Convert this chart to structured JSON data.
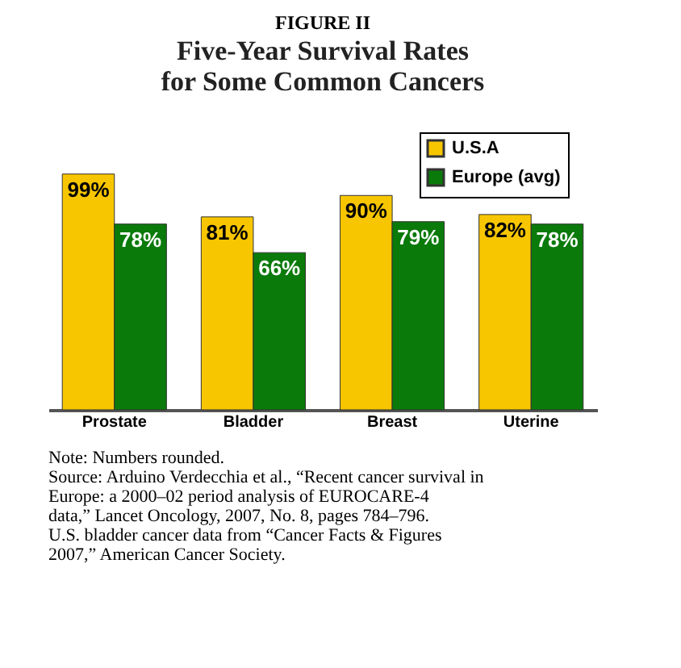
{
  "chart_data": {
    "type": "bar",
    "title": "FIGURE II",
    "subtitle": "Five-Year Survival Rates\nfor Some Common Cancers",
    "categories": [
      "Prostate",
      "Bladder",
      "Breast",
      "Uterine"
    ],
    "series": [
      {
        "name": "U.S.A",
        "color": "#f7c600",
        "values": [
          99,
          81,
          90,
          82
        ],
        "value_labels": [
          "99%",
          "81%",
          "90%",
          "82%"
        ]
      },
      {
        "name": "Europe (avg)",
        "color": "#0a7a0a",
        "values": [
          78,
          66,
          79,
          78
        ],
        "value_labels": [
          "78%",
          "66%",
          "79%",
          "78%"
        ]
      }
    ],
    "legend": "top right",
    "grid": false,
    "annotations": [
      "Note:  Numbers rounded.",
      "Source: Arduino Verdecchia et al., “Recent cancer survival in Europe: a 2000–02 period analysis of EUROCARE-4 data,” Lancet Oncology, 2007, No. 8, pages 784–796. U.S. bladder cancer data from “Cancer Facts & Figures 2007,” American Cancer Society."
    ]
  }
}
